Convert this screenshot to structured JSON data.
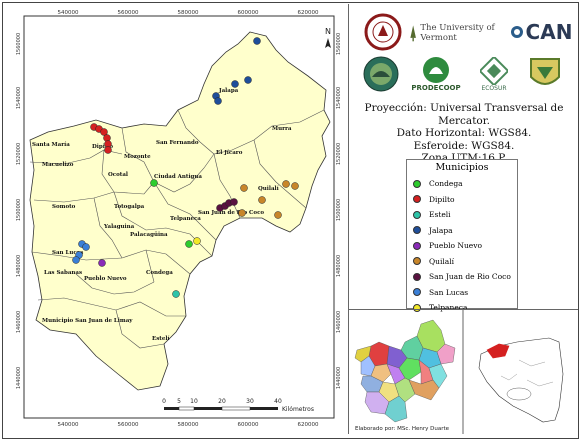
{
  "map": {
    "top_ticks": [
      "540000",
      "560000",
      "580000",
      "600000",
      "620000"
    ],
    "bottom_ticks": [
      "540000",
      "560000",
      "580000",
      "600000",
      "620000"
    ],
    "left_ticks": [
      "1560000",
      "1540000",
      "1520000",
      "1500000",
      "1480000",
      "1460000",
      "1440000"
    ],
    "right_ticks": [
      "1560000",
      "1540000",
      "1520000",
      "1500000",
      "1480000",
      "1460000",
      "1440000"
    ],
    "north_label": "N",
    "scalebar": {
      "labels": [
        "0",
        "5",
        "10",
        "20",
        "30",
        "40"
      ],
      "unit": "Kilómetros"
    },
    "place_labels": [
      "Jalapa",
      "Murra",
      "Santa María",
      "Dipilto",
      "Macuelizo",
      "Mozonte",
      "San Fernando",
      "El Jícaro",
      "Ocotal",
      "Ciudad Antigua",
      "Quilalí",
      "Somoto",
      "Totogalpa",
      "Yalaguina",
      "Telpaneca",
      "San Juan de Río Coco",
      "Palacagüina",
      "San Lucas",
      "Las Sabanas",
      "Pueblo Nuevo",
      "Condega",
      "Municipio San Juan de Limay",
      "Estelí"
    ]
  },
  "logos": {
    "row1": [
      "University of Vermont seal",
      "The University of Vermont",
      "CAN"
    ],
    "row2": [
      "Estelí seal",
      "PRODECOOP",
      "ECOSUR",
      "municipal seal"
    ]
  },
  "logo_texts": {
    "uvm": "The University of Vermont",
    "can": "CAN",
    "prodecoop": "PRODECOOP",
    "ecosur": "ECOSUR"
  },
  "info": {
    "line1": "Proyección: Universal Transversal de Mercator.",
    "line2": "Dato Horizontal: WGS84.",
    "line3": "Esferoide: WGS84.",
    "line4": "Zona UTM:16 P."
  },
  "legend": {
    "title": "Municipios",
    "items": [
      {
        "label": "Condega",
        "color": "#2ecc2e"
      },
      {
        "label": "Dipilto",
        "color": "#d42020"
      },
      {
        "label": "Esteli",
        "color": "#2ec4a8"
      },
      {
        "label": "Jalapa",
        "color": "#1f4e9a"
      },
      {
        "label": "Pueblo Nuevo",
        "color": "#8a2ab8"
      },
      {
        "label": "Quilalí",
        "color": "#c8862a"
      },
      {
        "label": "San Juan de Rio Coco",
        "color": "#5a1240"
      },
      {
        "label": "San Lucas",
        "color": "#3a7fd6"
      },
      {
        "label": "Telpaneca",
        "color": "#f2e82a"
      }
    ]
  },
  "credit": "Elaborado por: MSc. Henry Duarte"
}
